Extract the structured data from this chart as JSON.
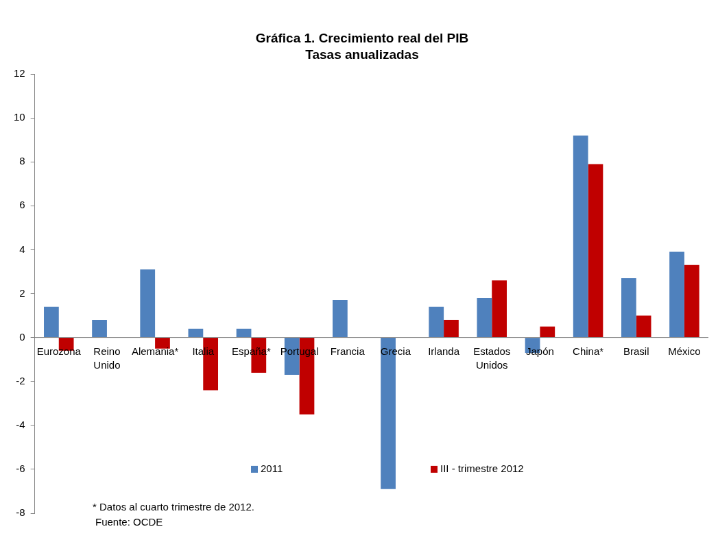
{
  "chart_data": {
    "type": "bar",
    "title": "Gráfica 1. Crecimiento real del PIB",
    "subtitle": "Tasas anualizadas",
    "categories": [
      "Eurozona",
      "Reino Unido",
      "Alemania*",
      "Italia",
      "España*",
      "Portugal",
      "Francia",
      "Grecia",
      "Irlanda",
      "Estados Unidos",
      "Japón",
      "China*",
      "Brasil",
      "México"
    ],
    "series": [
      {
        "name": "2011",
        "color": "#4f81bd",
        "values": [
          1.4,
          0.8,
          3.1,
          0.4,
          0.4,
          -1.7,
          1.7,
          -6.9,
          1.4,
          1.8,
          -0.7,
          9.2,
          2.7,
          3.9
        ]
      },
      {
        "name": "III - trimestre 2012",
        "color": "#c00000",
        "values": [
          -0.6,
          null,
          -0.5,
          -2.4,
          -1.6,
          -3.5,
          null,
          null,
          0.8,
          2.6,
          0.5,
          7.9,
          1.0,
          3.3
        ]
      }
    ],
    "ylim": [
      -8,
      12
    ],
    "yticks": [
      -8,
      -6,
      -4,
      -2,
      0,
      2,
      4,
      6,
      8,
      10,
      12
    ],
    "grid": false,
    "legend": "bottom",
    "annotations": [
      "* Datos al cuarto trimestre de 2012.",
      "Fuente: OCDE"
    ]
  }
}
